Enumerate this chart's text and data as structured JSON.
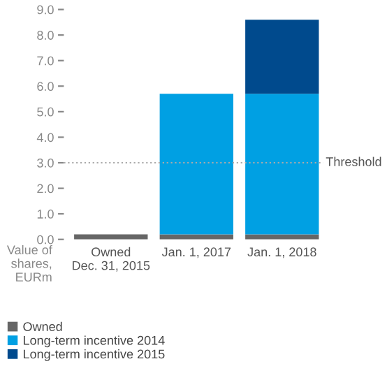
{
  "chart_data": {
    "type": "bar",
    "stacked": true,
    "ylabel": "Value of\nshares,\nEURm",
    "categories": [
      "Owned\nDec. 31, 2015",
      "Jan. 1, 2017",
      "Jan. 1, 2018"
    ],
    "series": [
      {
        "name": "Owned",
        "color": "#666666",
        "values": [
          0.2,
          0.2,
          0.2
        ]
      },
      {
        "name": "Long-term incentive 2014",
        "color": "#00a0e3",
        "values": [
          0,
          5.5,
          5.5
        ]
      },
      {
        "name": "Long-term incentive 2015",
        "color": "#004a8d",
        "values": [
          0,
          0,
          2.9
        ]
      }
    ],
    "ylim": [
      0,
      9
    ],
    "yticks": [
      {
        "value": 0,
        "label": "0.0"
      },
      {
        "value": 1,
        "label": "1.0"
      },
      {
        "value": 2,
        "label": "2.0"
      },
      {
        "value": 3,
        "label": "3.0"
      },
      {
        "value": 4,
        "label": "4.0"
      },
      {
        "value": 5,
        "label": "5.0"
      },
      {
        "value": 6,
        "label": "6.0"
      },
      {
        "value": 7,
        "label": "7.0"
      },
      {
        "value": 8,
        "label": "8.0"
      },
      {
        "value": 9,
        "label": "9.0"
      }
    ],
    "ref_lines": [
      {
        "axis": "y",
        "value": 3,
        "label": "Threshold",
        "color": "#aaaaaa",
        "line_style": "dotted"
      }
    ],
    "grid": false,
    "legend": "bottom"
  }
}
